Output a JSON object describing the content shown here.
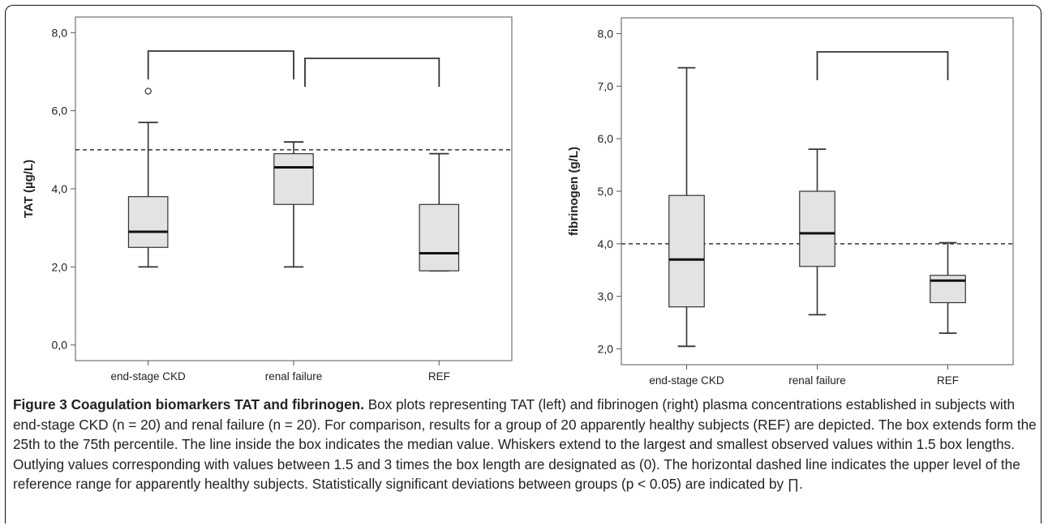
{
  "chart_data": [
    {
      "type": "box",
      "ylabel": "TAT  (µg/L)",
      "ylim": [
        -0.4,
        8.4
      ],
      "yticks": [
        "0,0",
        "2,0",
        "4,0",
        "6,0",
        "8,0"
      ],
      "ytick_values": [
        0,
        2,
        4,
        6,
        8
      ],
      "categories": [
        "end-stage CKD",
        "renal failure",
        "REF"
      ],
      "boxes": [
        {
          "category": "end-stage CKD",
          "min": 2.0,
          "q1": 2.5,
          "median": 2.9,
          "q3": 3.8,
          "max": 5.7,
          "outliers": [
            6.5
          ]
        },
        {
          "category": "renal failure",
          "min": 2.0,
          "q1": 3.6,
          "median": 4.55,
          "q3": 4.9,
          "max": 5.2,
          "outliers": []
        },
        {
          "category": "REF",
          "min": 1.9,
          "q1": 1.9,
          "median": 2.35,
          "q3": 3.6,
          "max": 4.9,
          "outliers": []
        }
      ],
      "reference_line": 5.0,
      "significance_brackets": [
        {
          "from": "end-stage CKD",
          "to": "renal failure"
        },
        {
          "from": "renal failure",
          "to": "REF"
        }
      ]
    },
    {
      "type": "box",
      "ylabel": "fibrinogen  (g/L)",
      "ylim": [
        1.7,
        8.3
      ],
      "yticks": [
        "2,0",
        "3,0",
        "4,0",
        "5,0",
        "6,0",
        "7,0",
        "8,0"
      ],
      "ytick_values": [
        2,
        3,
        4,
        5,
        6,
        7,
        8
      ],
      "categories": [
        "end-stage CKD",
        "renal failure",
        "REF"
      ],
      "boxes": [
        {
          "category": "end-stage CKD",
          "min": 2.05,
          "q1": 2.8,
          "median": 3.7,
          "q3": 4.92,
          "max": 7.35,
          "outliers": []
        },
        {
          "category": "renal failure",
          "min": 2.65,
          "q1": 3.57,
          "median": 4.2,
          "q3": 5.0,
          "max": 5.8,
          "outliers": []
        },
        {
          "category": "REF",
          "min": 2.3,
          "q1": 2.88,
          "median": 3.3,
          "q3": 3.4,
          "max": 4.02,
          "outliers": []
        }
      ],
      "reference_line": 4.0,
      "significance_brackets": [
        {
          "from": "renal failure",
          "to": "REF"
        }
      ]
    }
  ],
  "colors": {
    "box_fill": "#e3e3e3",
    "stroke": "#333333",
    "reference_line": "#444444",
    "axis": "#555555"
  },
  "caption": {
    "title": "Figure 3 Coagulation biomarkers TAT and fibrinogen.",
    "text": "Box plots representing TAT (left) and fibrinogen (right) plasma concentrations established in subjects with end-stage CKD (n = 20) and renal failure (n = 20). For comparison, results for a group of 20 apparently healthy subjects (REF) are depicted. The box extends form the 25th to the 75th percentile. The line inside the box indicates the median value. Whiskers extend to the largest and smallest observed values within 1.5 box lengths. Outlying values corresponding with values between 1.5 and 3 times the box length are designated as (0). The horizontal dashed line indicates the upper level of the reference range for apparently healthy subjects. Statistically significant deviations between groups (p < 0.05) are indicated by ∏."
  }
}
